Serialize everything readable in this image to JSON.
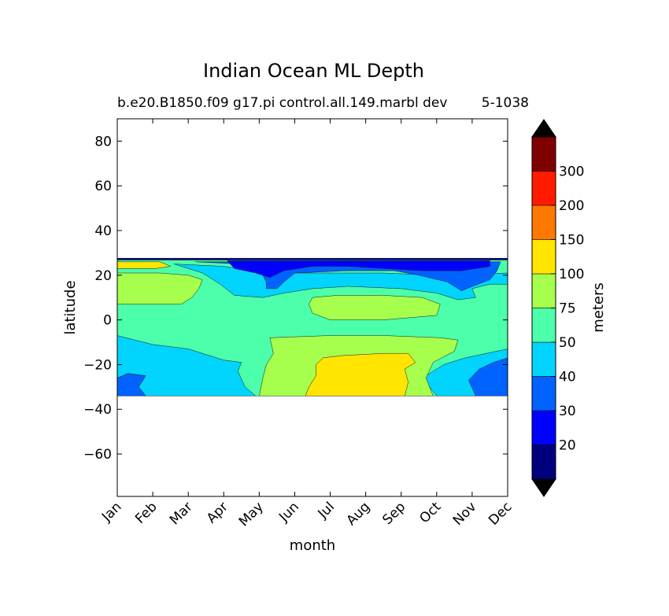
{
  "chart_data": {
    "type": "heatmap",
    "title": "Indian Ocean ML Depth",
    "subtitle_left": "b.e20.B1850.f09 g17.pi control.all.149.marbl dev",
    "subtitle_right": "5-1038",
    "xlabel": "month",
    "ylabel": "latitude",
    "colorbar_label": "meters",
    "x_categories": [
      "Jan",
      "Feb",
      "Mar",
      "Apr",
      "May",
      "Jun",
      "Jul",
      "Aug",
      "Sep",
      "Oct",
      "Nov",
      "Dec"
    ],
    "xlim": [
      0,
      11
    ],
    "ylim": [
      -79,
      90
    ],
    "y_ticks": [
      80,
      60,
      40,
      20,
      0,
      -20,
      -40,
      -60
    ],
    "data_lat_range": [
      -34,
      27
    ],
    "levels": [
      20,
      30,
      40,
      50,
      75,
      100,
      150,
      200,
      300
    ],
    "level_colors": [
      "#00007f",
      "#0000ff",
      "#0062ff",
      "#00d4ff",
      "#4cffaa",
      "#a6ff4c",
      "#ffe500",
      "#ff7800",
      "#ff1a00",
      "#7f0000"
    ],
    "extend_colors": {
      "under": "#000000",
      "over": "#000000"
    },
    "contour_regions": [
      {
        "value": 45,
        "polygon": [
          [
            0,
            -7
          ],
          [
            1,
            -11
          ],
          [
            2,
            -13
          ],
          [
            3,
            -18
          ],
          [
            3.5,
            -19
          ],
          [
            3.4,
            -23
          ],
          [
            3.6,
            -30
          ],
          [
            3.9,
            -34
          ],
          [
            0.8,
            -34
          ],
          [
            0.6,
            -30
          ],
          [
            0.8,
            -25
          ],
          [
            0.3,
            -24
          ],
          [
            0,
            -26
          ]
        ]
      },
      {
        "value": 45,
        "polygon": [
          [
            11,
            -13
          ],
          [
            10.4,
            -15
          ],
          [
            9.8,
            -17
          ],
          [
            9.2,
            -20
          ],
          [
            8.6,
            -26
          ],
          [
            9,
            -34
          ],
          [
            11,
            -34
          ]
        ]
      },
      {
        "value": 35,
        "polygon": [
          [
            0,
            -26
          ],
          [
            0.3,
            -24
          ],
          [
            0.8,
            -25
          ],
          [
            0.6,
            -30
          ],
          [
            0.8,
            -34
          ],
          [
            0,
            -34
          ]
        ]
      },
      {
        "value": 35,
        "polygon": [
          [
            11,
            -17
          ],
          [
            10.6,
            -19
          ],
          [
            10.2,
            -22
          ],
          [
            9.9,
            -27
          ],
          [
            10.1,
            -34
          ],
          [
            11,
            -34
          ]
        ]
      },
      {
        "value": 90,
        "polygon": [
          [
            0,
            21
          ],
          [
            1.2,
            21
          ],
          [
            2,
            20
          ],
          [
            2.4,
            18
          ],
          [
            2.3,
            14
          ],
          [
            2.1,
            10
          ],
          [
            1.8,
            7
          ],
          [
            0,
            7
          ]
        ]
      },
      {
        "value": 90,
        "polygon": [
          [
            5.5,
            10
          ],
          [
            6.2,
            11
          ],
          [
            7.5,
            11
          ],
          [
            8.6,
            10
          ],
          [
            9.1,
            7
          ],
          [
            9,
            2
          ],
          [
            7.5,
            0
          ],
          [
            6,
            0
          ],
          [
            5.5,
            3
          ],
          [
            5.4,
            7
          ]
        ]
      },
      {
        "value": 90,
        "polygon": [
          [
            4.3,
            -8
          ],
          [
            6,
            -7
          ],
          [
            7.5,
            -7
          ],
          [
            9.1,
            -8
          ],
          [
            9.6,
            -9
          ],
          [
            9.5,
            -14
          ],
          [
            8.9,
            -19
          ],
          [
            8.7,
            -26
          ],
          [
            8.9,
            -34
          ],
          [
            4,
            -34
          ],
          [
            4.1,
            -26
          ],
          [
            4.2,
            -20
          ],
          [
            4.4,
            -15
          ]
        ]
      },
      {
        "value": 125,
        "polygon": [
          [
            5.8,
            -17
          ],
          [
            6.3,
            -16
          ],
          [
            7.5,
            -15
          ],
          [
            8.2,
            -15
          ],
          [
            8.4,
            -19
          ],
          [
            8.1,
            -22
          ],
          [
            8.2,
            -28
          ],
          [
            8.1,
            -34
          ],
          [
            5.3,
            -34
          ],
          [
            5.4,
            -30
          ],
          [
            5.6,
            -25
          ],
          [
            5.6,
            -20
          ]
        ]
      },
      {
        "value": 125,
        "polygon": [
          [
            0,
            23
          ],
          [
            0,
            26
          ],
          [
            1.2,
            26
          ],
          [
            1.5,
            24
          ],
          [
            1.1,
            23
          ]
        ]
      },
      {
        "value": 45,
        "polygon": [
          [
            1.6,
            25
          ],
          [
            3,
            24
          ],
          [
            4.3,
            21
          ],
          [
            5.2,
            21
          ],
          [
            6.5,
            21
          ],
          [
            7.5,
            21
          ],
          [
            9,
            20
          ],
          [
            11,
            21
          ],
          [
            11,
            16
          ],
          [
            10.5,
            16
          ],
          [
            10,
            14
          ],
          [
            10.1,
            10
          ],
          [
            9.6,
            9
          ],
          [
            9,
            12
          ],
          [
            8,
            14
          ],
          [
            6.5,
            15
          ],
          [
            5.5,
            14
          ],
          [
            4.7,
            12
          ],
          [
            4.1,
            10
          ],
          [
            3.3,
            11
          ],
          [
            2.9,
            16
          ],
          [
            2.4,
            21
          ]
        ]
      },
      {
        "value": 35,
        "polygon": [
          [
            2.2,
            26
          ],
          [
            3.5,
            25
          ],
          [
            4,
            23
          ],
          [
            4.2,
            17
          ],
          [
            4.2,
            14
          ],
          [
            4.5,
            14
          ],
          [
            4.7,
            17
          ],
          [
            5,
            21
          ],
          [
            6.5,
            22
          ],
          [
            7.8,
            22
          ],
          [
            8.5,
            20
          ],
          [
            9.3,
            17
          ],
          [
            9.7,
            13
          ],
          [
            10,
            15
          ],
          [
            10.5,
            18
          ],
          [
            10.7,
            22
          ],
          [
            10.8,
            26
          ]
        ]
      },
      {
        "value": 25,
        "polygon": [
          [
            3.1,
            26.5
          ],
          [
            5.5,
            26.5
          ],
          [
            7.5,
            26.5
          ],
          [
            9.5,
            26.5
          ],
          [
            10.5,
            26.5
          ],
          [
            10.5,
            24
          ],
          [
            9.7,
            22
          ],
          [
            8.6,
            22
          ],
          [
            7.5,
            23
          ],
          [
            6.5,
            24
          ],
          [
            5.5,
            24
          ],
          [
            4.7,
            22
          ],
          [
            4.3,
            19
          ],
          [
            3.9,
            21
          ],
          [
            3.3,
            23
          ]
        ]
      },
      {
        "value": 15,
        "polygon": [
          [
            0,
            26.8
          ],
          [
            11,
            26.8
          ],
          [
            11,
            27.6
          ],
          [
            0,
            27.6
          ]
        ]
      }
    ]
  }
}
